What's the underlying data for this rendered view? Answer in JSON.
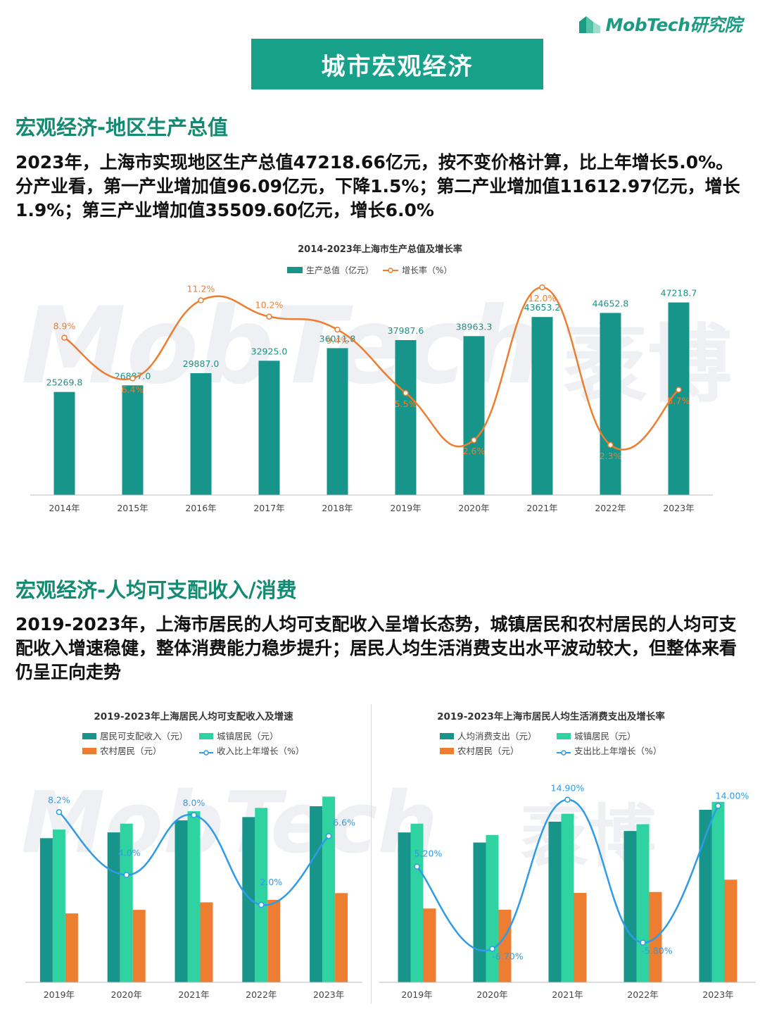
{
  "header": {
    "logo_text": "MobTech研究院",
    "banner_title": "城市宏观经济"
  },
  "watermark": {
    "text": "MobTech",
    "text_cn": "袤博"
  },
  "section1": {
    "title": "宏观经济-地区生产总值",
    "paragraph": "2023年，上海市实现地区生产总值47218.66亿元，按不变价格计算，比上年增长5.0%。分产业看，第一产业增加值96.09亿元，下降1.5%；第二产业增加值11612.97亿元，增长1.9%；第三产业增加值35509.60亿元，增长6.0%"
  },
  "section2": {
    "title": "宏观经济-人均可支配收入/消费",
    "paragraph": "2019-2023年，上海市居民的人均可支配收入呈增长态势，城镇居民和农村居民的人均可支配收入增速稳健，整体消费能力稳步提升；居民人均生活消费支出水平波动较大，但整体来看仍呈正向走势"
  },
  "colors": {
    "teal": "#17958a",
    "green": "#2fd3a2",
    "orange": "#ed7d31",
    "blue": "#2f9be6",
    "gdp_bar": "#17958a"
  },
  "chart_data": [
    {
      "type": "bar",
      "title": "2014-2023年上海市生产总值及增长率",
      "categories": [
        "2014年",
        "2015年",
        "2016年",
        "2017年",
        "2018年",
        "2019年",
        "2020年",
        "2021年",
        "2022年",
        "2023年"
      ],
      "series": [
        {
          "name": "生产总值（亿元）",
          "type": "bar",
          "axis": "left",
          "values": [
            25269.8,
            26887.0,
            29887.0,
            32925.0,
            36011.8,
            37987.6,
            38963.3,
            43653.2,
            44652.8,
            47218.7
          ],
          "labels": [
            "25269.8",
            "26887.0",
            "29887.0",
            "32925.0",
            "36011.8",
            "37987.6",
            "38963.3",
            "43653.2",
            "44652.8",
            "47218.7"
          ]
        },
        {
          "name": "增长率（%）",
          "type": "line",
          "axis": "right",
          "smooth": true,
          "values": [
            8.9,
            6.4,
            11.2,
            10.2,
            9.4,
            5.5,
            2.6,
            12.0,
            2.3,
            5.7
          ],
          "labels": [
            "8.9%",
            "6.4%",
            "11.2%",
            "10.2%",
            "9.4%",
            "5.5%",
            "2.6%",
            "12.0%",
            "2.3%",
            "5.7%"
          ]
        }
      ],
      "ylim": [
        0,
        48000
      ],
      "y2lim": [
        0,
        13
      ],
      "legend": "top-center",
      "grid": false
    },
    {
      "type": "bar",
      "title": "2019-2023年上海居民人均可支配收入及增速",
      "categories": [
        "2019年",
        "2020年",
        "2021年",
        "2022年",
        "2023年"
      ],
      "series": [
        {
          "name": "居民可支配收入（元）",
          "type": "bar",
          "axis": "left",
          "values": [
            69442,
            72232,
            78027,
            79610,
            84834
          ]
        },
        {
          "name": "城镇居民（元）",
          "type": "bar",
          "axis": "left",
          "values": [
            73615,
            76437,
            82429,
            84034,
            89477
          ]
        },
        {
          "name": "农村居民（元）",
          "type": "bar",
          "axis": "left",
          "values": [
            33195,
            34911,
            38521,
            39729,
            42988
          ]
        },
        {
          "name": "收入比上年增长（%）",
          "type": "line",
          "axis": "right",
          "smooth": true,
          "values": [
            8.2,
            4.0,
            8.0,
            2.0,
            6.6
          ],
          "labels": [
            "8.2%",
            "4.0%",
            "8.0%",
            "2.0%",
            "6.6%"
          ]
        }
      ],
      "ylim": [
        0,
        95000
      ],
      "y2lim": [
        -2,
        10
      ],
      "legend": "top-center",
      "grid": false
    },
    {
      "type": "bar",
      "title": "2019-2023年上海市居民人均生活消费支出及增长率",
      "categories": [
        "2019年",
        "2020年",
        "2021年",
        "2022年",
        "2023年"
      ],
      "series": [
        {
          "name": "人均消费支出（元）",
          "type": "bar",
          "axis": "left",
          "values": [
            45605,
            42536,
            48879,
            46045,
            52508
          ]
        },
        {
          "name": "城镇居民（元）",
          "type": "bar",
          "axis": "left",
          "values": [
            48272,
            44839,
            51295,
            48111,
            54919
          ]
        },
        {
          "name": "农村居民（元）",
          "type": "bar",
          "axis": "left",
          "values": [
            22449,
            22095,
            27205,
            27485,
            31225
          ]
        },
        {
          "name": "支出比上年增长（%）",
          "type": "line",
          "axis": "right",
          "smooth": true,
          "values": [
            5.2,
            -6.7,
            14.9,
            -5.8,
            14.0
          ],
          "labels": [
            "5.20%",
            "-6.70%",
            "14.90%",
            "-5.80%",
            "14.00%"
          ]
        }
      ],
      "ylim": [
        0,
        60000
      ],
      "y2lim": [
        -9,
        17
      ],
      "legend": "top-center",
      "grid": false
    }
  ]
}
